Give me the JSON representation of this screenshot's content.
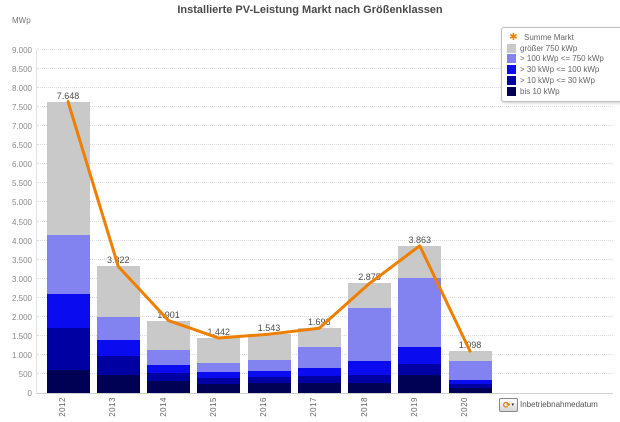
{
  "footer": {
    "dimension_label": "Inbetriebnahmedatum"
  },
  "chart_data": {
    "type": "bar",
    "variant": "stacked-bars-with-line-overlay",
    "title": "Installierte PV-Leistung Markt nach Größenklassen",
    "ylabel": "MWp",
    "ylim": [
      0,
      9000
    ],
    "ytick_step": 500,
    "grid": true,
    "legend_position": "top-right",
    "x_dimension": "Inbetriebnahmedatum",
    "categories": [
      "2012",
      "2013",
      "2014",
      "2015",
      "2016",
      "2017",
      "2018",
      "2019",
      "2020"
    ],
    "series": [
      {
        "name": "bis 10 kWp",
        "color": "#000055",
        "values": [
          610,
          480,
          320,
          240,
          250,
          260,
          270,
          480,
          120
        ]
      },
      {
        "name": "> 10 kWp <= 30 kWp",
        "color": "#0000a2",
        "values": [
          1085,
          500,
          210,
          160,
          170,
          180,
          210,
          281,
          110
        ]
      },
      {
        "name": "> 30 kWp <= 100 kWp",
        "color": "#0b0bf0",
        "values": [
          910,
          400,
          210,
          150,
          160,
          220,
          349,
          436,
          120
        ]
      },
      {
        "name": "> 100 kWp <= 750 kWp",
        "color": "#8282f0",
        "values": [
          1530,
          620,
          400,
          240,
          280,
          540,
          1402,
          1821,
          479
        ]
      },
      {
        "name": "größer 750 kWp",
        "color": "#c9c9c9",
        "values": [
          3513,
          1322,
          761,
          652,
          683,
          498,
          644,
          845,
          269
        ]
      }
    ],
    "line_series": {
      "name": "Summe Markt",
      "color": "#ee7f00",
      "values": [
        7648,
        3322,
        1901,
        1442,
        1543,
        1698,
        2875,
        3863,
        1098
      ],
      "labels": [
        "7.648",
        "3.322",
        "1.901",
        "1.442",
        "1.543",
        "1.698",
        "2.875",
        "3.863",
        "1.098"
      ]
    }
  }
}
